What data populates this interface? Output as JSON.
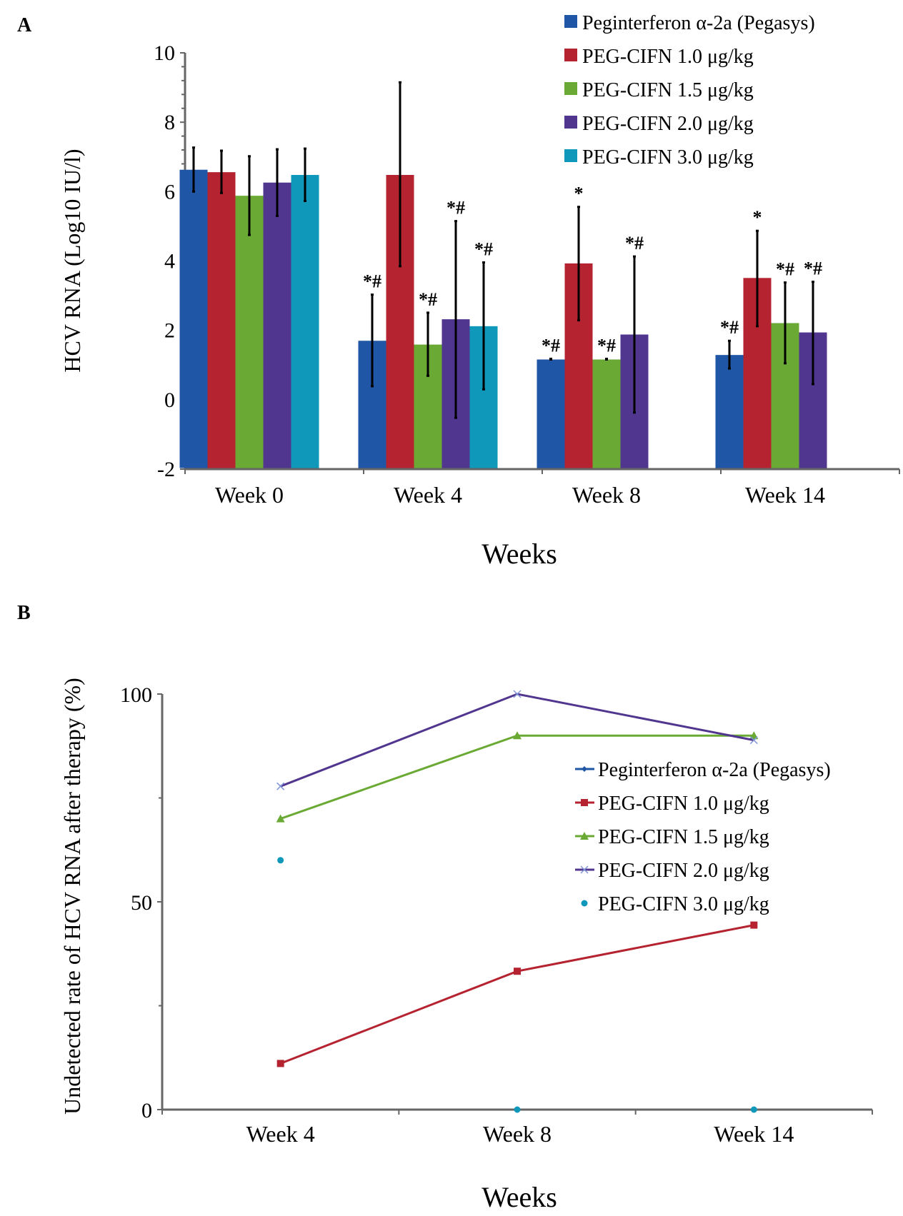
{
  "chart_data": [
    {
      "panel": "A",
      "type": "bar",
      "title": "",
      "xlabel": "Weeks",
      "ylabel": "HCV RNA (Log10 IU/l)",
      "ylim": [
        -2,
        10
      ],
      "yticks": [
        -2,
        0,
        2,
        4,
        6,
        8,
        10
      ],
      "ytick_labels": [
        "-2",
        "0",
        "2",
        "4",
        "6",
        "8",
        "10"
      ],
      "minor_ticks_per_major": 4,
      "grid": false,
      "legend_position": "top-right",
      "categories": [
        "Week 0",
        "Week 4",
        "Week 8",
        "Week 14"
      ],
      "series": [
        {
          "name": "Peginterferon α-2a (Pegasys)",
          "color": "#1f56a6",
          "values": [
            6.63,
            1.7,
            1.16,
            1.29
          ],
          "err_high": [
            7.27,
            3.03,
            1.18,
            1.7
          ],
          "err_low": [
            6.0,
            0.39,
            1.16,
            0.9
          ],
          "annotations": [
            "",
            "*#",
            "*#",
            "*#"
          ]
        },
        {
          "name": "PEG-CIFN 1.0 μg/kg",
          "color": "#b52230",
          "values": [
            6.56,
            6.48,
            3.93,
            3.51
          ],
          "err_high": [
            7.18,
            9.15,
            5.56,
            4.87
          ],
          "err_low": [
            5.96,
            3.85,
            2.29,
            2.12
          ],
          "annotations": [
            "",
            "",
            "*",
            "*"
          ]
        },
        {
          "name": "PEG-CIFN 1.5 μg/kg",
          "color": "#6aaa34",
          "values": [
            5.88,
            1.59,
            1.16,
            2.21
          ],
          "err_high": [
            7.02,
            2.51,
            1.18,
            3.38
          ],
          "err_low": [
            4.75,
            0.69,
            1.16,
            1.05
          ],
          "annotations": [
            "",
            "*#",
            "*#",
            "*#"
          ]
        },
        {
          "name": "PEG-CIFN 2.0 μg/kg",
          "color": "#51368f",
          "values": [
            6.26,
            2.32,
            1.88,
            1.94
          ],
          "err_high": [
            7.22,
            5.15,
            4.13,
            3.4
          ],
          "err_low": [
            5.3,
            -0.52,
            -0.37,
            0.45
          ],
          "annotations": [
            "",
            "*#",
            "*#",
            "*#"
          ]
        },
        {
          "name": "PEG-CIFN 3.0 μg/kg",
          "color": "#0f98ba",
          "values": [
            6.48,
            2.12,
            null,
            null
          ],
          "err_high": [
            7.24,
            3.96,
            null,
            null
          ],
          "err_low": [
            5.73,
            0.3,
            null,
            null
          ],
          "annotations": [
            "",
            "*#",
            "",
            ""
          ]
        }
      ]
    },
    {
      "panel": "B",
      "type": "line",
      "title": "",
      "xlabel": "Weeks",
      "ylabel": "Undetected rate of HCV RNA after therapy (%)",
      "ylim": [
        0,
        100
      ],
      "yticks": [
        0,
        50,
        100
      ],
      "ytick_labels": [
        "0",
        "50",
        "100"
      ],
      "minor_yticks": [
        25,
        75
      ],
      "grid": false,
      "legend_position": "right",
      "x": [
        "Week 4",
        "Week 8",
        "Week 14"
      ],
      "series": [
        {
          "name": "Peginterferon α-2a (Pegasys)",
          "color": "#1f56a6",
          "marker": "diamond",
          "values": [
            null,
            null,
            null
          ]
        },
        {
          "name": "PEG-CIFN 1.0 μg/kg",
          "color": "#b52230",
          "marker": "square",
          "values": [
            11.1,
            33.3,
            44.4
          ]
        },
        {
          "name": "PEG-CIFN 1.5 μg/kg",
          "color": "#6aaa34",
          "marker": "triangle",
          "values": [
            70,
            90,
            90
          ]
        },
        {
          "name": "PEG-CIFN 2.0 μg/kg",
          "color": "#51368f",
          "marker": "x",
          "values": [
            77.8,
            100,
            88.9
          ]
        },
        {
          "name": "PEG-CIFN 3.0 μg/kg",
          "color": "#0f98ba",
          "marker": "circle",
          "values": [
            60,
            0,
            0
          ],
          "line": false
        }
      ]
    }
  ]
}
